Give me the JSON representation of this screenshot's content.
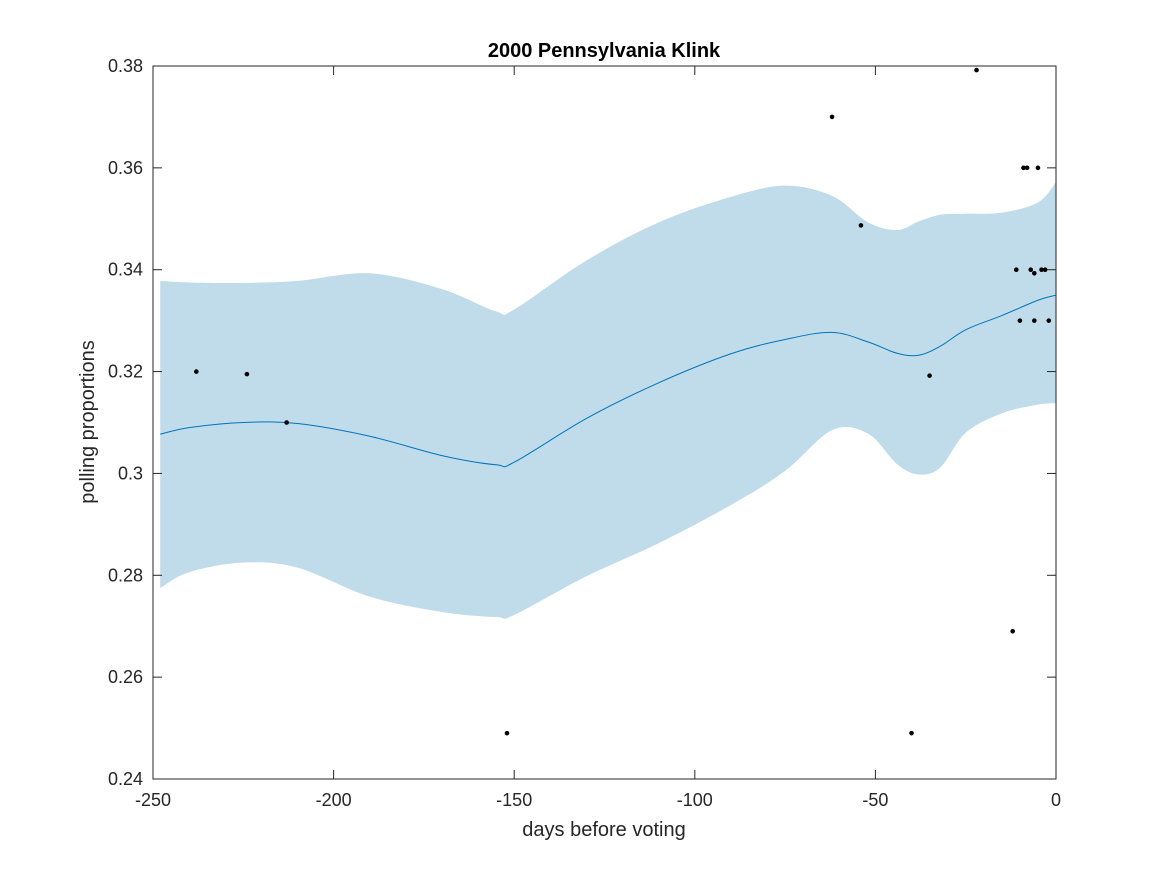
{
  "chart_data": {
    "type": "line",
    "title": "2000 Pennsylvania Klink",
    "xlabel": "days before voting",
    "ylabel": "polling proportions",
    "xlim": [
      -250,
      0
    ],
    "ylim": [
      0.24,
      0.38
    ],
    "xticks": [
      -250,
      -200,
      -150,
      -100,
      -50,
      0
    ],
    "xtick_labels": [
      "-250",
      "-200",
      "-150",
      "-100",
      "-50",
      "0"
    ],
    "yticks": [
      0.24,
      0.26,
      0.28,
      0.3,
      0.32,
      0.34,
      0.36,
      0.38
    ],
    "ytick_labels": [
      "0.24",
      "0.26",
      "0.28",
      "0.3",
      "0.32",
      "0.34",
      "0.36",
      "0.38"
    ],
    "grid": false,
    "colors": {
      "band": "#c0dcea",
      "line": "#0072bd",
      "points": "#000000",
      "axes": "#262626"
    },
    "band": {
      "x": [
        -248,
        -240,
        -225,
        -210,
        -190,
        -170,
        -155,
        -150,
        -130,
        -110,
        -90,
        -75,
        -62,
        -52,
        -44,
        -38,
        -32,
        -25,
        -15,
        -5,
        0
      ],
      "upper": [
        0.3378,
        0.3375,
        0.3374,
        0.3378,
        0.3393,
        0.3362,
        0.3318,
        0.3322,
        0.3418,
        0.3493,
        0.3543,
        0.3565,
        0.3545,
        0.3493,
        0.3478,
        0.3495,
        0.3508,
        0.351,
        0.3512,
        0.3532,
        0.3572
      ],
      "lower": [
        0.2775,
        0.2806,
        0.2825,
        0.2815,
        0.2758,
        0.2728,
        0.2718,
        0.2722,
        0.2798,
        0.2863,
        0.2938,
        0.3005,
        0.3085,
        0.3078,
        0.3018,
        0.2998,
        0.3012,
        0.308,
        0.3118,
        0.3135,
        0.3138
      ]
    },
    "mean": {
      "x": [
        -248,
        -240,
        -225,
        -210,
        -190,
        -170,
        -155,
        -150,
        -130,
        -110,
        -90,
        -75,
        -62,
        -52,
        -44,
        -38,
        -32,
        -25,
        -15,
        -5,
        0
      ],
      "y": [
        0.3077,
        0.309,
        0.31,
        0.3098,
        0.3073,
        0.3035,
        0.3017,
        0.3022,
        0.3108,
        0.3178,
        0.3235,
        0.3263,
        0.3277,
        0.3258,
        0.3236,
        0.3232,
        0.325,
        0.3282,
        0.331,
        0.334,
        0.335
      ]
    },
    "points": {
      "x": [
        -238,
        -224,
        -213,
        -152,
        -62,
        -54,
        -40,
        -35,
        -22,
        -12,
        -11,
        -10,
        -9,
        -8,
        -7,
        -6,
        -6,
        -5,
        -4,
        -3,
        -2
      ],
      "y": [
        0.32,
        0.3195,
        0.31,
        0.249,
        0.37,
        0.3487,
        0.249,
        0.3192,
        0.3792,
        0.269,
        0.34,
        0.33,
        0.36,
        0.36,
        0.34,
        0.3393,
        0.33,
        0.36,
        0.34,
        0.34,
        0.33
      ]
    }
  }
}
